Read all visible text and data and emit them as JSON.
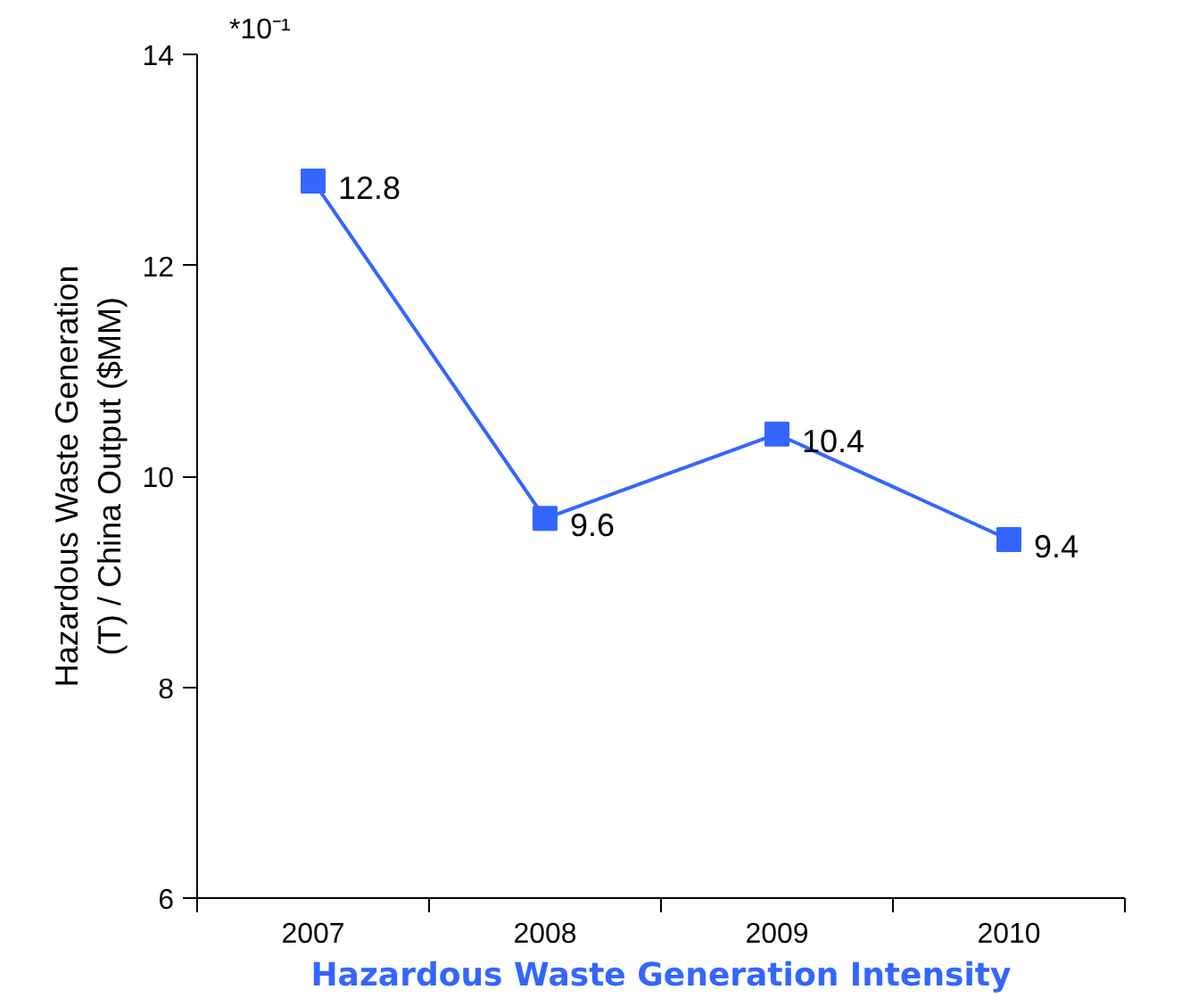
{
  "chart_data": {
    "type": "line",
    "categories": [
      "2007",
      "2008",
      "2009",
      "2010"
    ],
    "series": [
      {
        "color": "#3366ff",
        "values": [
          12.8,
          9.6,
          10.4,
          9.4
        ]
      }
    ],
    "ylim": [
      6,
      14
    ],
    "yticks": [
      6,
      8,
      10,
      12,
      14
    ],
    "ylabel": "Hazardous Waste Generation (T) / China Output ($MM)",
    "xlabel": "Hazardous Waste Generation Intensity",
    "annotations": [
      "*10⁻¹"
    ],
    "marker": "square",
    "data_labels": true,
    "grid": false
  }
}
